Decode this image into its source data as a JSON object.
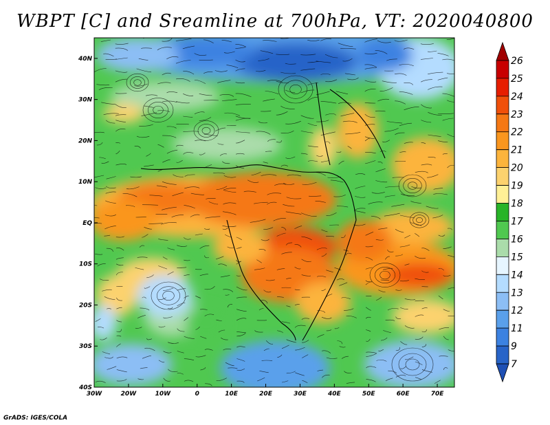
{
  "title": "WBPT [C] and Sreamline at 700hPa, VT: 2020040800",
  "credit": "GrADS: IGES/COLA",
  "map": {
    "lon_ticks": [
      "30W",
      "20W",
      "10W",
      "0",
      "10E",
      "20E",
      "30E",
      "40E",
      "50E",
      "60E",
      "70E"
    ],
    "lat_ticks": [
      "40N",
      "30N",
      "20N",
      "10N",
      "EQ",
      "10S",
      "20S",
      "30S",
      "40S"
    ],
    "lon_range": [
      -30,
      75
    ],
    "lat_range": [
      -40,
      45
    ]
  },
  "colorbar": {
    "levels": [
      "26",
      "25",
      "24",
      "23",
      "22",
      "21",
      "20",
      "19",
      "18",
      "17",
      "16",
      "15",
      "14",
      "13",
      "12",
      "11",
      "9",
      "7"
    ],
    "colors": [
      "#a00000",
      "#c80000",
      "#e61e00",
      "#f0500a",
      "#f57814",
      "#fa961e",
      "#fcb43c",
      "#fcd26e",
      "#fff096",
      "#28b428",
      "#50c850",
      "#aadcaa",
      "#e6f5ff",
      "#b4dcff",
      "#8cbef5",
      "#5aa0eb",
      "#3c82e1",
      "#2864c8",
      "#1e50b4"
    ]
  }
}
